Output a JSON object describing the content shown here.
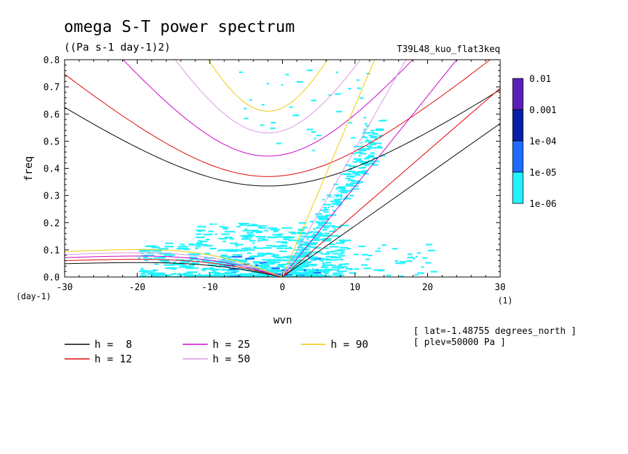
{
  "chart_data": {
    "type": "heatmap",
    "title": "omega S-T power spectrum",
    "subtitle": "((Pa s-1 day-1)2)",
    "run_label": "T39L48_kuo_flat3keq",
    "xlabel": "wvn",
    "ylabel": "freq",
    "x_unit": "(1)",
    "y_unit": "(day-1)",
    "xlim": [
      -30,
      30
    ],
    "ylim": [
      0,
      0.8
    ],
    "xticks": [
      -30,
      -20,
      -10,
      0,
      10,
      20,
      30
    ],
    "xtick_labels": [
      "-30",
      "-20",
      "-10",
      "0",
      "10",
      "20",
      "30"
    ],
    "yticks": [
      0,
      0.1,
      0.2,
      0.3,
      0.4,
      0.5,
      0.6,
      0.7,
      0.8
    ],
    "ytick_labels": [
      "0.0",
      "0.1",
      "0.2",
      "0.3",
      "0.4",
      "0.5",
      "0.6",
      "0.7",
      "0.8"
    ],
    "colorbar": {
      "levels": [
        "0.01",
        "0.001",
        "1e-04",
        "1e-05",
        "1e-06"
      ],
      "colors": [
        "#5a1fb8",
        "#0b1fa6",
        "#1e6bff",
        "#23f2ff"
      ]
    },
    "dispersion_curves": {
      "legend": [
        {
          "label": "h =  8",
          "h": 8,
          "color": "#000000"
        },
        {
          "label": "h = 12",
          "h": 12,
          "color": "#e00000"
        },
        {
          "label": "h = 25",
          "h": 25,
          "color": "#c800c8"
        },
        {
          "label": "h = 50",
          "h": 50,
          "color": "#d996e0"
        },
        {
          "label": "h = 90",
          "h": 90,
          "color": "#f0c800"
        }
      ],
      "min_freq": [
        0.335,
        0.37,
        0.445,
        0.53,
        0.61
      ],
      "kelvin_freq_at_wvn30": [
        0.565,
        0.695,
        1.0,
        1.41,
        1.89
      ]
    },
    "annotations": [
      "[ lat=-1.48755 degrees_north ]",
      "[ plev=50000 Pa ]"
    ],
    "grid": false
  }
}
